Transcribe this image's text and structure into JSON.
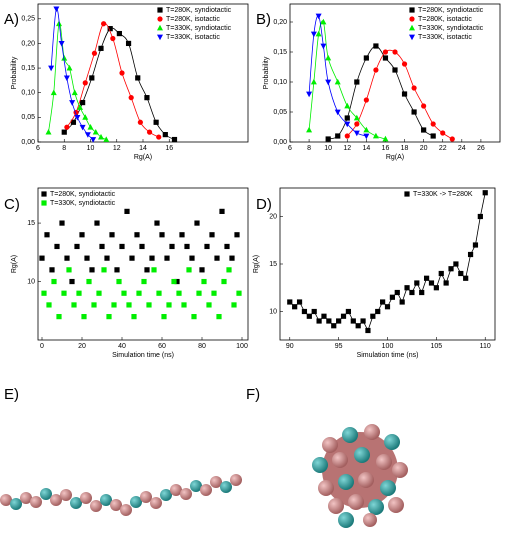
{
  "chart_data": [
    {
      "type": "scatter",
      "panel_label": "A)",
      "xlabel": "Rg(A)",
      "ylabel": "Probability",
      "line": "smooth",
      "xlim": [
        6,
        22
      ],
      "xticks": [
        6,
        8,
        10,
        12,
        14,
        16
      ],
      "ylim": [
        0,
        0.28
      ],
      "yticks": [
        {
          "value": 0,
          "label": "0,00"
        },
        {
          "value": 0.05,
          "label": "0,05"
        },
        {
          "value": 0.1,
          "label": "0,10"
        },
        {
          "value": 0.15,
          "label": "0,15"
        },
        {
          "value": 0.2,
          "label": "0,20"
        },
        {
          "value": 0.25,
          "label": "0,25"
        }
      ],
      "series": [
        {
          "name": "T=280K, syndiotactic",
          "color": "#000000",
          "marker": "square",
          "x": [
            8.0,
            8.7,
            9.4,
            10.1,
            10.8,
            11.5,
            12.2,
            12.9,
            13.6,
            14.3,
            15.0,
            15.7,
            16.4
          ],
          "values": [
            0.02,
            0.04,
            0.08,
            0.13,
            0.19,
            0.23,
            0.22,
            0.2,
            0.13,
            0.09,
            0.04,
            0.015,
            0.005
          ]
        },
        {
          "name": "T=280K, isotactic",
          "color": "#ff0000",
          "marker": "circle",
          "x": [
            8.2,
            8.9,
            9.6,
            10.3,
            11.0,
            11.7,
            12.4,
            13.1,
            13.8,
            14.5,
            15.2
          ],
          "values": [
            0.03,
            0.06,
            0.12,
            0.18,
            0.24,
            0.21,
            0.14,
            0.09,
            0.04,
            0.02,
            0.01
          ]
        },
        {
          "name": "T=330K, syndiotactic",
          "color": "#00ee00",
          "marker": "triangle-up",
          "x": [
            6.8,
            7.2,
            7.6,
            8.0,
            8.4,
            8.8,
            9.2,
            9.6,
            10.0,
            10.4,
            10.8,
            11.2
          ],
          "values": [
            0.02,
            0.1,
            0.24,
            0.17,
            0.15,
            0.1,
            0.07,
            0.05,
            0.03,
            0.02,
            0.01,
            0.005
          ]
        },
        {
          "name": "T=330K, isotactic",
          "color": "#0000ff",
          "marker": "triangle-down",
          "x": [
            7.0,
            7.4,
            7.8,
            8.2,
            8.6,
            9.0,
            9.4,
            9.8,
            10.2
          ],
          "values": [
            0.15,
            0.27,
            0.2,
            0.13,
            0.08,
            0.05,
            0.03,
            0.015,
            0.005
          ]
        }
      ]
    },
    {
      "type": "scatter",
      "panel_label": "B)",
      "xlabel": "Rg(A)",
      "ylabel": "Probability",
      "line": "smooth",
      "xlim": [
        6,
        28
      ],
      "xticks": [
        6,
        8,
        10,
        12,
        14,
        16,
        18,
        20,
        22,
        24,
        26
      ],
      "ylim": [
        0,
        0.23
      ],
      "yticks": [
        {
          "value": 0,
          "label": "0,00"
        },
        {
          "value": 0.05,
          "label": "0,05"
        },
        {
          "value": 0.1,
          "label": "0,10"
        },
        {
          "value": 0.15,
          "label": "0,15"
        },
        {
          "value": 0.2,
          "label": "0,20"
        }
      ],
      "series": [
        {
          "name": "T=280K, syndiotactic",
          "color": "#000000",
          "marker": "square",
          "x": [
            10,
            11,
            12,
            13,
            14,
            15,
            16,
            17,
            18,
            19,
            20,
            21
          ],
          "values": [
            0.005,
            0.01,
            0.04,
            0.1,
            0.14,
            0.16,
            0.14,
            0.12,
            0.08,
            0.05,
            0.02,
            0.01
          ]
        },
        {
          "name": "T=280K, isotactic",
          "color": "#ff0000",
          "marker": "circle",
          "x": [
            12,
            13,
            14,
            15,
            16,
            17,
            18,
            19,
            20,
            21,
            22,
            23
          ],
          "values": [
            0.01,
            0.03,
            0.07,
            0.12,
            0.15,
            0.15,
            0.13,
            0.09,
            0.06,
            0.03,
            0.015,
            0.005
          ]
        },
        {
          "name": "T=330K, syndiotactic",
          "color": "#00ee00",
          "marker": "triangle-up",
          "x": [
            8,
            8.5,
            9,
            9.5,
            10,
            11,
            12,
            13,
            14,
            15,
            16
          ],
          "values": [
            0.02,
            0.1,
            0.18,
            0.2,
            0.14,
            0.1,
            0.06,
            0.04,
            0.02,
            0.01,
            0.005
          ]
        },
        {
          "name": "T=330K, isotactic",
          "color": "#0000ff",
          "marker": "triangle-down",
          "x": [
            8,
            8.5,
            9,
            9.5,
            10,
            11,
            12,
            13,
            14
          ],
          "values": [
            0.08,
            0.18,
            0.21,
            0.16,
            0.1,
            0.05,
            0.03,
            0.015,
            0.01
          ]
        }
      ]
    },
    {
      "type": "scatter",
      "panel_label": "C)",
      "xlabel": "Simulation time (ns)",
      "ylabel": "Rg(A)",
      "line": "none",
      "xlim": [
        -2,
        103
      ],
      "xticks": [
        0,
        20,
        40,
        60,
        80,
        100
      ],
      "ylim": [
        5,
        18
      ],
      "yticks": [
        10,
        15
      ],
      "series": [
        {
          "name": "T=280K, syndiotactic",
          "color": "#000000",
          "marker": "square",
          "x": [
            0,
            2.5,
            5,
            7.5,
            10,
            12.5,
            15,
            17.5,
            20,
            22.5,
            25,
            27.5,
            30,
            32.5,
            35,
            37.5,
            40,
            42.5,
            45,
            47.5,
            50,
            52.5,
            55,
            57.5,
            60,
            62.5,
            65,
            67.5,
            70,
            72.5,
            75,
            77.5,
            80,
            82.5,
            85,
            87.5,
            90,
            92.5,
            95,
            97.5
          ],
          "values": [
            12,
            14,
            11,
            13,
            15,
            12,
            10,
            13,
            14,
            12,
            11,
            15,
            13,
            12,
            14,
            11,
            13,
            16,
            12,
            14,
            13,
            11,
            12,
            15,
            14,
            12,
            13,
            10,
            14,
            13,
            12,
            15,
            11,
            13,
            14,
            12,
            16,
            13,
            12,
            14
          ]
        },
        {
          "name": "T=330K, syndiotactic",
          "color": "#00ee00",
          "marker": "square",
          "x": [
            1,
            3.5,
            6,
            8.5,
            11,
            13.5,
            16,
            18.5,
            21,
            23.5,
            26,
            28.5,
            31,
            33.5,
            36,
            38.5,
            41,
            43.5,
            46,
            48.5,
            51,
            53.5,
            56,
            58.5,
            61,
            63.5,
            66,
            68.5,
            71,
            73.5,
            76,
            78.5,
            81,
            83.5,
            86,
            88.5,
            91,
            93.5,
            96,
            98.5
          ],
          "values": [
            9,
            8,
            10,
            7,
            9,
            11,
            8,
            9,
            7,
            10,
            8,
            9,
            11,
            7,
            8,
            10,
            9,
            8,
            7,
            9,
            10,
            8,
            11,
            9,
            7,
            8,
            10,
            9,
            8,
            11,
            7,
            9,
            10,
            8,
            9,
            7,
            10,
            11,
            8,
            9
          ]
        }
      ]
    },
    {
      "type": "scatter",
      "panel_label": "D)",
      "xlabel": "Simulation time (ns)",
      "ylabel": "Rg(A)",
      "line": "straight",
      "xlim": [
        89,
        111
      ],
      "xticks": [
        90,
        95,
        100,
        105,
        110
      ],
      "ylim": [
        7,
        23
      ],
      "yticks": [
        10,
        15,
        20
      ],
      "series": [
        {
          "name": "T=330K -> T=280K",
          "color": "#000000",
          "marker": "square",
          "x": [
            90,
            90.5,
            91,
            91.5,
            92,
            92.5,
            93,
            93.5,
            94,
            94.5,
            95,
            95.5,
            96,
            96.5,
            97,
            97.5,
            98,
            98.5,
            99,
            99.5,
            100,
            100.5,
            101,
            101.5,
            102,
            102.5,
            103,
            103.5,
            104,
            104.5,
            105,
            105.5,
            106,
            106.5,
            107,
            107.5,
            108,
            108.5,
            109,
            109.5,
            110
          ],
          "values": [
            11,
            10.5,
            11,
            10,
            9.5,
            10,
            9,
            9.5,
            9,
            8.5,
            9,
            9.5,
            10,
            9,
            8.5,
            9,
            8,
            9.5,
            10,
            11,
            10.5,
            11.5,
            12,
            11,
            12.5,
            12,
            13,
            12,
            13.5,
            13,
            12.5,
            14,
            13,
            14.5,
            15,
            14,
            13.5,
            16,
            17,
            20,
            22.5
          ]
        }
      ]
    }
  ],
  "images": [
    {
      "label": "E)"
    },
    {
      "label": "F)"
    }
  ]
}
